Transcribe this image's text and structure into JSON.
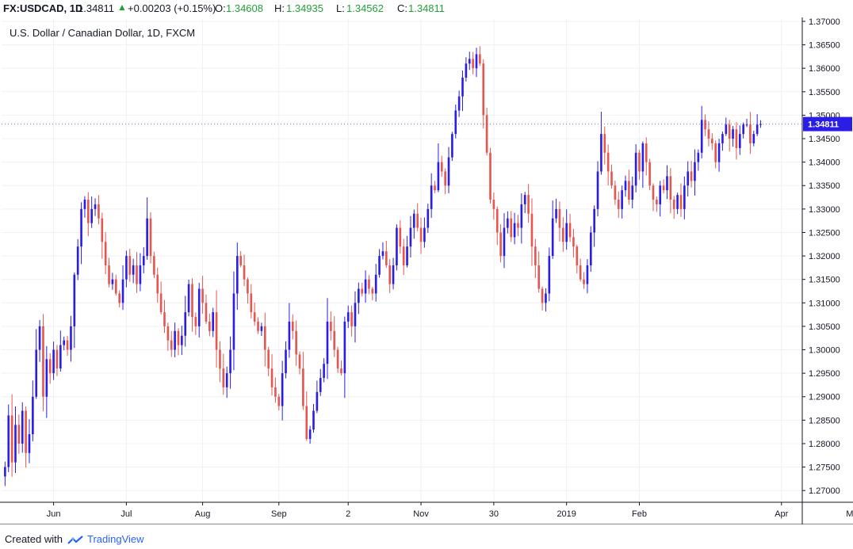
{
  "header": {
    "symbol": "FX:USDCAD, 1D",
    "last": "1.34811",
    "change": "+0.00203 (+0.15%)",
    "o_label": "O:",
    "o_value": "1.34608",
    "h_label": "H:",
    "h_value": "1.34935",
    "l_label": "L:",
    "l_value": "1.34562",
    "c_label": "C:",
    "c_value": "1.34811"
  },
  "legend_title": "U.S. Dollar / Canadian Dollar, 1D, FXCM",
  "footer": {
    "prefix": "Created with",
    "brand": "TradingView"
  },
  "colors": {
    "up": "#2a1ee6",
    "down": "#e5564f",
    "grid": "#eef0f3",
    "axis": "#131722",
    "price_tag": "#2a1ee6"
  },
  "chart_data": {
    "type": "candlestick",
    "ylim": [
      1.2675,
      1.3705
    ],
    "y_ticks": [
      "1.37000",
      "1.36500",
      "1.36000",
      "1.35500",
      "1.35000",
      "1.34500",
      "1.34000",
      "1.33500",
      "1.33000",
      "1.32500",
      "1.32000",
      "1.31500",
      "1.31000",
      "1.30500",
      "1.30000",
      "1.29500",
      "1.29000",
      "1.28500",
      "1.28000",
      "1.27500",
      "1.27000"
    ],
    "x_ticks": [
      {
        "label": "Jun",
        "index": 14
      },
      {
        "label": "Jul",
        "index": 35
      },
      {
        "label": "Aug",
        "index": 57
      },
      {
        "label": "Sep",
        "index": 79
      },
      {
        "label": "2",
        "index": 99
      },
      {
        "label": "Nov",
        "index": 120
      },
      {
        "label": "30",
        "index": 141
      },
      {
        "label": "2019",
        "index": 162
      },
      {
        "label": "Feb",
        "index": 183
      },
      {
        "label": "Apr",
        "index": 224
      },
      {
        "label": "May",
        "index": 245
      }
    ],
    "last_price": "1.34811",
    "series": [
      1.275,
      1.286,
      1.276,
      1.284,
      1.28,
      1.287,
      1.278,
      1.282,
      1.29,
      1.3,
      1.305,
      1.29,
      1.298,
      1.295,
      1.3,
      1.296,
      1.301,
      1.302,
      1.3,
      1.305,
      1.316,
      1.322,
      1.33,
      1.332,
      1.327,
      1.33,
      1.331,
      1.328,
      1.323,
      1.318,
      1.314,
      1.315,
      1.312,
      1.31,
      1.315,
      1.32,
      1.316,
      1.318,
      1.314,
      1.318,
      1.32,
      1.328,
      1.32,
      1.316,
      1.312,
      1.308,
      1.305,
      1.302,
      1.3,
      1.304,
      1.301,
      1.303,
      1.308,
      1.314,
      1.307,
      1.305,
      1.313,
      1.31,
      1.306,
      1.304,
      1.308,
      1.3,
      1.296,
      1.292,
      1.295,
      1.3,
      1.312,
      1.32,
      1.318,
      1.315,
      1.312,
      1.308,
      1.306,
      1.304,
      1.305,
      1.3,
      1.296,
      1.292,
      1.29,
      1.288,
      1.295,
      1.3,
      1.306,
      1.304,
      1.299,
      1.296,
      1.288,
      1.281,
      1.283,
      1.287,
      1.291,
      1.294,
      1.297,
      1.306,
      1.304,
      1.3,
      1.296,
      1.295,
      1.306,
      1.308,
      1.305,
      1.31,
      1.313,
      1.312,
      1.315,
      1.313,
      1.312,
      1.316,
      1.32,
      1.321,
      1.318,
      1.314,
      1.318,
      1.326,
      1.322,
      1.318,
      1.322,
      1.326,
      1.329,
      1.326,
      1.323,
      1.326,
      1.33,
      1.335,
      1.334,
      1.34,
      1.338,
      1.335,
      1.341,
      1.346,
      1.351,
      1.354,
      1.358,
      1.361,
      1.362,
      1.36,
      1.363,
      1.361,
      1.35,
      1.342,
      1.332,
      1.33,
      1.325,
      1.32,
      1.326,
      1.328,
      1.324,
      1.327,
      1.326,
      1.331,
      1.333,
      1.329,
      1.322,
      1.318,
      1.313,
      1.31,
      1.312,
      1.32,
      1.328,
      1.33,
      1.326,
      1.323,
      1.327,
      1.324,
      1.322,
      1.318,
      1.315,
      1.314,
      1.318,
      1.325,
      1.33,
      1.338,
      1.346,
      1.342,
      1.338,
      1.335,
      1.332,
      1.33,
      1.334,
      1.336,
      1.332,
      1.335,
      1.342,
      1.338,
      1.344,
      1.34,
      1.335,
      1.332,
      1.331,
      1.335,
      1.334,
      1.337,
      1.332,
      1.33,
      1.333,
      1.33,
      1.335,
      1.338,
      1.336,
      1.34,
      1.342,
      1.349,
      1.347,
      1.345,
      1.344,
      1.34,
      1.344,
      1.346,
      1.348,
      1.345,
      1.347,
      1.343,
      1.346,
      1.348,
      1.348,
      1.344,
      1.346,
      1.348,
      1.3481
    ]
  }
}
